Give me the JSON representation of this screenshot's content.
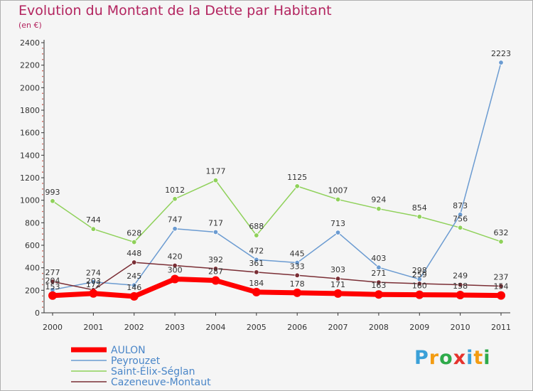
{
  "chart_data": {
    "type": "line",
    "title": "Evolution du Montant de la Dette par Habitant",
    "subtitle": "(en €)",
    "xlabel": "",
    "ylabel": "",
    "x": [
      "2000",
      "2001",
      "2002",
      "2003",
      "2004",
      "2005",
      "2006",
      "2007",
      "2008",
      "2009",
      "2010",
      "2011"
    ],
    "yticks": [
      0,
      200,
      400,
      600,
      800,
      1000,
      1200,
      1400,
      1600,
      1800,
      2000,
      2200,
      2400
    ],
    "ylim": [
      0,
      2400
    ],
    "grid": false,
    "legend_position": "bottom-left",
    "series": [
      {
        "name": "Saint-Élix-Séglan",
        "color": "#8fd15a",
        "width": 1.5,
        "marker": true,
        "values": [
          993,
          744,
          628,
          1012,
          1177,
          688,
          1125,
          1007,
          924,
          854,
          756,
          632
        ]
      },
      {
        "name": "Peyrouzet",
        "color": "#6b9bd1",
        "width": 1.5,
        "marker": true,
        "values": [
          204,
          274,
          245,
          747,
          717,
          472,
          445,
          713,
          403,
          298,
          873,
          2223
        ]
      },
      {
        "name": "Cazeneuve-Montaut",
        "color": "#7a2e35",
        "width": 1.5,
        "marker": true,
        "values": [
          277,
          203,
          448,
          420,
          392,
          361,
          333,
          303,
          271,
          259,
          249,
          237
        ]
      },
      {
        "name": "AULON",
        "color": "#ff0000",
        "width": 7,
        "marker": true,
        "values": [
          153,
          172,
          146,
          300,
          287,
          184,
          178,
          171,
          163,
          160,
          158,
          154
        ]
      }
    ],
    "legend_order": [
      "AULON",
      "Peyrouzet",
      "Saint-Élix-Séglan",
      "Cazeneuve-Montaut"
    ]
  },
  "branding": {
    "logo_letters": [
      "P",
      "r",
      "o",
      "x",
      "i",
      "t",
      "i"
    ],
    "logo_colors": [
      "#3aa0d8",
      "#f39c12",
      "#2eaa4a",
      "#e5322d",
      "#3aa0d8",
      "#f39c12",
      "#2eaa4a"
    ]
  }
}
